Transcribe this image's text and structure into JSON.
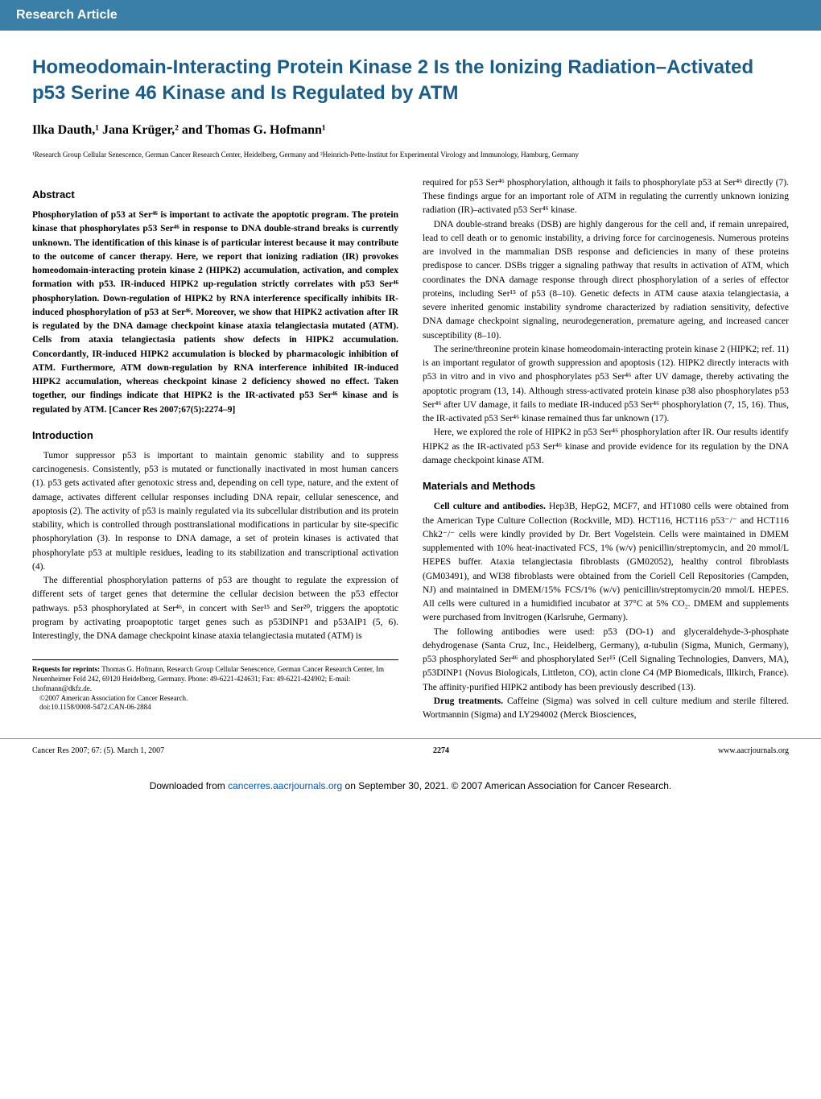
{
  "header_bar": "Research Article",
  "title": "Homeodomain-Interacting Protein Kinase 2 Is the Ionizing Radiation–Activated p53 Serine 46 Kinase and Is Regulated by ATM",
  "authors": "Ilka Dauth,¹ Jana Krüger,² and Thomas G. Hofmann¹",
  "affiliations": "¹Research Group Cellular Senescence, German Cancer Research Center, Heidelberg, Germany and ²Heinrich-Pette-Institut for Experimental Virology and Immunology, Hamburg, Germany",
  "abstract_heading": "Abstract",
  "abstract_text": "Phosphorylation of p53 at Ser⁴⁶ is important to activate the apoptotic program. The protein kinase that phosphorylates p53 Ser⁴⁶ in response to DNA double-strand breaks is currently unknown. The identification of this kinase is of particular interest because it may contribute to the outcome of cancer therapy. Here, we report that ionizing radiation (IR) provokes homeodomain-interacting protein kinase 2 (HIPK2) accumulation, activation, and complex formation with p53. IR-induced HIPK2 up-regulation strictly correlates with p53 Ser⁴⁶ phosphorylation. Down-regulation of HIPK2 by RNA interference specifically inhibits IR-induced phosphorylation of p53 at Ser⁴⁶. Moreover, we show that HIPK2 activation after IR is regulated by the DNA damage checkpoint kinase ataxia telangiectasia mutated (ATM). Cells from ataxia telangiectasia patients show defects in HIPK2 accumulation. Concordantly, IR-induced HIPK2 accumulation is blocked by pharmacologic inhibition of ATM. Furthermore, ATM down-regulation by RNA interference inhibited IR-induced HIPK2 accumulation, whereas checkpoint kinase 2 deficiency showed no effect. Taken together, our findings indicate that HIPK2 is the IR-activated p53 Ser⁴⁶ kinase and is regulated by ATM. [Cancer Res 2007;67(5):2274–9]",
  "intro_heading": "Introduction",
  "intro_p1": "Tumor suppressor p53 is important to maintain genomic stability and to suppress carcinogenesis. Consistently, p53 is mutated or functionally inactivated in most human cancers (1). p53 gets activated after genotoxic stress and, depending on cell type, nature, and the extent of damage, activates different cellular responses including DNA repair, cellular senescence, and apoptosis (2). The activity of p53 is mainly regulated via its subcellular distribution and its protein stability, which is controlled through posttranslational modifications in particular by site-specific phosphorylation (3). In response to DNA damage, a set of protein kinases is activated that phosphorylate p53 at multiple residues, leading to its stabilization and transcriptional activation (4).",
  "intro_p2": "The differential phosphorylation patterns of p53 are thought to regulate the expression of different sets of target genes that determine the cellular decision between the p53 effector pathways. p53 phosphorylated at Ser⁴⁶, in concert with Ser¹⁵ and Ser²⁰, triggers the apoptotic program by activating proapoptotic target genes such as p53DINP1 and p53AIP1 (5, 6). Interestingly, the DNA damage checkpoint kinase ataxia telangiectasia mutated (ATM) is",
  "intro_p3": "required for p53 Ser⁴⁶ phosphorylation, although it fails to phosphorylate p53 at Ser⁴⁶ directly (7). These findings argue for an important role of ATM in regulating the currently unknown ionizing radiation (IR)–activated p53 Ser⁴⁶ kinase.",
  "intro_p4": "DNA double-strand breaks (DSB) are highly dangerous for the cell and, if remain unrepaired, lead to cell death or to genomic instability, a driving force for carcinogenesis. Numerous proteins are involved in the mammalian DSB response and deficiencies in many of these proteins predispose to cancer. DSBs trigger a signaling pathway that results in activation of ATM, which coordinates the DNA damage response through direct phosphorylation of a series of effector proteins, including Ser¹⁵ of p53 (8–10). Genetic defects in ATM cause ataxia telangiectasia, a severe inherited genomic instability syndrome characterized by radiation sensitivity, defective DNA damage checkpoint signaling, neurodegeneration, premature ageing, and increased cancer susceptibility (8–10).",
  "intro_p5": "The serine/threonine protein kinase homeodomain-interacting protein kinase 2 (HIPK2; ref. 11) is an important regulator of growth suppression and apoptosis (12). HIPK2 directly interacts with p53 in vitro and in vivo and phosphorylates p53 Ser⁴⁶ after UV damage, thereby activating the apoptotic program (13, 14). Although stress-activated protein kinase p38 also phosphorylates p53 Ser⁴⁶ after UV damage, it fails to mediate IR-induced p53 Ser⁴⁶ phosphorylation (7, 15, 16). Thus, the IR-activated p53 Ser⁴⁶ kinase remained thus far unknown (17).",
  "intro_p6": "Here, we explored the role of HIPK2 in p53 Ser⁴⁶ phosphorylation after IR. Our results identify HIPK2 as the IR-activated p53 Ser⁴⁶ kinase and provide evidence for its regulation by the DNA damage checkpoint kinase ATM.",
  "methods_heading": "Materials and Methods",
  "methods_p1_lead": "Cell culture and antibodies.",
  "methods_p1": " Hep3B, HepG2, MCF7, and HT1080 cells were obtained from the American Type Culture Collection (Rockville, MD). HCT116, HCT116 p53⁻/⁻ and HCT116 Chk2⁻/⁻ cells were kindly provided by Dr. Bert Vogelstein. Cells were maintained in DMEM supplemented with 10% heat-inactivated FCS, 1% (w/v) penicillin/streptomycin, and 20 mmol/L HEPES buffer. Ataxia telangiectasia fibroblasts (GM02052), healthy control fibroblasts (GM03491), and WI38 fibroblasts were obtained from the Coriell Cell Repositories (Campden, NJ) and maintained in DMEM/15% FCS/1% (w/v) penicillin/streptomycin/20 mmol/L HEPES. All cells were cultured in a humidified incubator at 37°C at 5% CO₂. DMEM and supplements were purchased from Invitrogen (Karlsruhe, Germany).",
  "methods_p2": "The following antibodies were used: p53 (DO-1) and glyceraldehyde-3-phosphate dehydrogenase (Santa Cruz, Inc., Heidelberg, Germany), α-tubulin (Sigma, Munich, Germany), p53 phosphorylated Ser⁴⁶ and phosphorylated Ser¹⁵ (Cell Signaling Technologies, Danvers, MA), p53DINP1 (Novus Biologicals, Littleton, CO), actin clone C4 (MP Biomedicals, Illkirch, France). The affinity-purified HIPK2 antibody has been previously described (13).",
  "methods_p3_lead": "Drug treatments.",
  "methods_p3": " Caffeine (Sigma) was solved in cell culture medium and sterile filtered. Wortmannin (Sigma) and LY294002 (Merck Biosciences,",
  "requests_heading": "Requests for reprints:",
  "requests_body": " Thomas G. Hofmann, Research Group Cellular Senescence, German Cancer Research Center, Im Neuenheimer Feld 242, 69120 Heidelberg, Germany. Phone: 49-6221-424631; Fax: 49-6221-424902; E-mail: t.hofmann@dkfz.de.",
  "copyright": "©2007 American Association for Cancer Research.",
  "doi": "doi:10.1158/0008-5472.CAN-06-2884",
  "footer_left": "Cancer Res 2007; 67: (5). March 1, 2007",
  "footer_center": "2274",
  "footer_right": "www.aacrjournals.org",
  "download_note_prefix": "Downloaded from ",
  "download_note_link": "cancerres.aacrjournals.org",
  "download_note_suffix": " on September 30, 2021. © 2007 American Association for Cancer Research.",
  "colors": {
    "header_bg": "#3a7fa8",
    "title": "#1a5c8a",
    "link": "#0055cc"
  }
}
